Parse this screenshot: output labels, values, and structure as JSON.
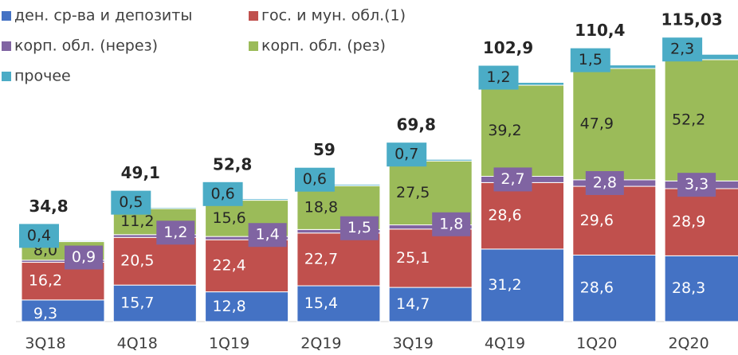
{
  "chart_data": {
    "type": "stacked_bar",
    "categories": [
      "3Q18",
      "4Q18",
      "1Q19",
      "2Q19",
      "3Q19",
      "4Q19",
      "1Q20",
      "2Q20"
    ],
    "series": [
      {
        "name": "ден. ср-ва и депозиты",
        "color": "#4472c4",
        "values": [
          9.3,
          15.7,
          12.8,
          15.4,
          14.7,
          31.2,
          28.6,
          28.3
        ],
        "value_labels": [
          "9,3",
          "15,7",
          "12,8",
          "15,4",
          "14,7",
          "31,2",
          "28,6",
          "28,3"
        ]
      },
      {
        "name": "гос. и мун. обл.(1)",
        "color": "#c0504d",
        "values": [
          16.2,
          20.5,
          22.4,
          22.7,
          25.1,
          28.6,
          29.6,
          28.9
        ],
        "value_labels": [
          "16,2",
          "20,5",
          "22,4",
          "22,7",
          "25,1",
          "28,6",
          "29,6",
          "28,9"
        ]
      },
      {
        "name": "корп. обл. (нерез)",
        "color": "#8064a2",
        "values": [
          0.9,
          1.2,
          1.4,
          1.5,
          1.8,
          2.7,
          2.8,
          3.3
        ],
        "value_labels": [
          "0,9",
          "1,2",
          "1,4",
          "1,5",
          "1,8",
          "2,7",
          "2,8",
          "3,3"
        ]
      },
      {
        "name": "корп. обл. (рез)",
        "color": "#9bbb59",
        "values": [
          8.0,
          11.2,
          15.6,
          18.8,
          27.5,
          39.2,
          47.9,
          52.2
        ],
        "value_labels": [
          "8,0",
          "11,2",
          "15,6",
          "18,8",
          "27,5",
          "39,2",
          "47,9",
          "52,2"
        ]
      },
      {
        "name": "прочее",
        "color": "#4bacc6",
        "values": [
          0.4,
          0.5,
          0.6,
          0.6,
          0.7,
          1.2,
          1.5,
          2.3
        ],
        "value_labels": [
          "0,4",
          "0,5",
          "0,6",
          "0,6",
          "0,7",
          "1,2",
          "1,5",
          "2,3"
        ]
      }
    ],
    "totals": [
      34.8,
      49.1,
      52.8,
      59,
      69.8,
      102.9,
      110.4,
      115.03
    ],
    "total_labels": [
      "34,8",
      "49,1",
      "52,8",
      "59",
      "69,8",
      "102,9",
      "110,4",
      "115,03"
    ]
  }
}
